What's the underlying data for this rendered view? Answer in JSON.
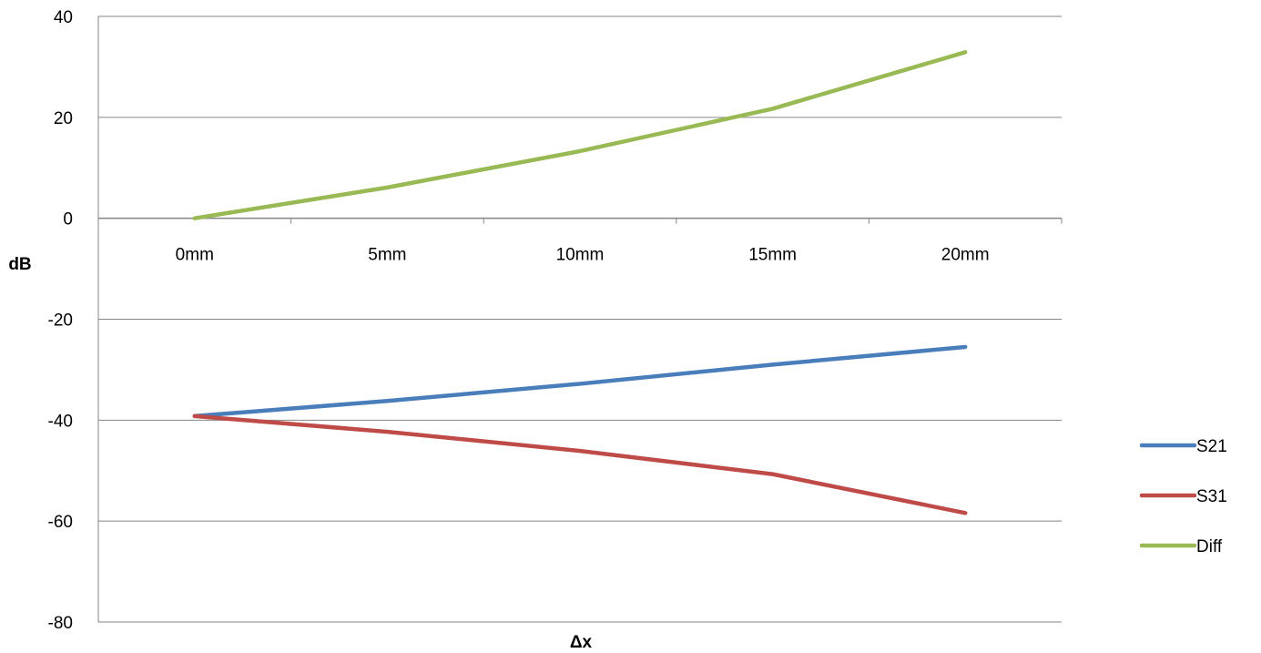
{
  "chart_data": {
    "type": "line",
    "title": "",
    "xlabel": "Δx",
    "ylabel": "dB",
    "categories": [
      "0mm",
      "5mm",
      "10mm",
      "15mm",
      "20mm"
    ],
    "ylim": [
      -80,
      40
    ],
    "yticks": [
      -80,
      -60,
      -40,
      -20,
      0,
      20,
      40
    ],
    "grid": true,
    "legend": "right",
    "series": [
      {
        "name": "S21",
        "color": "#4a7ebb",
        "values": [
          -39.2,
          -36.2,
          -32.8,
          -29.0,
          -25.5
        ]
      },
      {
        "name": "S31",
        "color": "#be4b48",
        "values": [
          -39.2,
          -42.3,
          -46.1,
          -50.7,
          -58.4
        ]
      },
      {
        "name": "Diff",
        "color": "#98b954",
        "values": [
          0.0,
          6.1,
          13.3,
          21.7,
          32.9
        ]
      }
    ]
  }
}
